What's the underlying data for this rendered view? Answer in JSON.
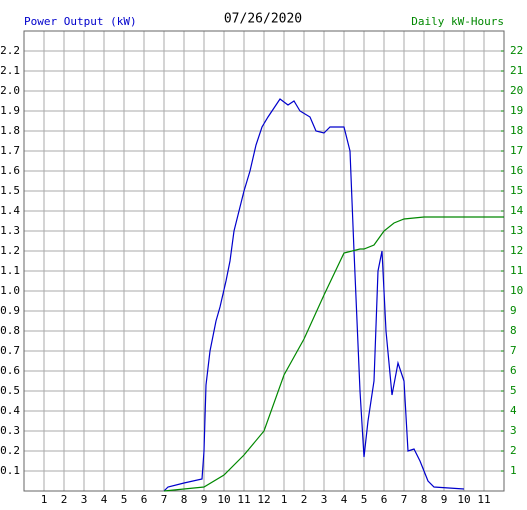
{
  "chart_data": {
    "type": "line",
    "title": "07/26/2020",
    "xlim": [
      0,
      24
    ],
    "xticks": [
      1,
      2,
      3,
      4,
      5,
      6,
      7,
      8,
      9,
      10,
      11,
      12,
      {
        "value": 13,
        "label": "1"
      },
      {
        "value": 14,
        "label": "2"
      },
      {
        "value": 15,
        "label": "3"
      },
      {
        "value": 16,
        "label": "4"
      },
      {
        "value": 17,
        "label": "5"
      },
      {
        "value": 18,
        "label": "6"
      },
      {
        "value": 19,
        "label": "7"
      },
      {
        "value": 20,
        "label": "8"
      },
      {
        "value": 21,
        "label": "9"
      },
      {
        "value": 22,
        "label": "10"
      },
      {
        "value": 23,
        "label": "11"
      }
    ],
    "ylim": [
      0,
      2.3
    ],
    "yticks": [
      0.1,
      0.2,
      0.3,
      0.4,
      0.5,
      0.6,
      0.7,
      0.8,
      0.9,
      {
        "value": 1,
        "label": "1.0"
      },
      1.1,
      1.2,
      1.3,
      1.4,
      1.5,
      1.6,
      1.7,
      1.8,
      1.9,
      {
        "value": 2,
        "label": "2.0"
      },
      2.1,
      2.2
    ],
    "y2lim": [
      0,
      23
    ],
    "y2ticks": [
      1,
      2,
      3,
      4,
      5,
      6,
      7,
      8,
      9,
      10,
      11,
      12,
      13,
      14,
      15,
      16,
      17,
      18,
      19,
      20,
      21,
      22
    ],
    "grid": true,
    "series": [
      {
        "name": "Power Output (kW)",
        "color": "#0000cc",
        "axis": "y",
        "x": [
          7.0,
          7.2,
          8.0,
          8.9,
          9.0,
          9.1,
          9.3,
          9.6,
          9.8,
          10.1,
          10.3,
          10.5,
          10.8,
          11.0,
          11.3,
          11.6,
          11.9,
          12.2,
          12.8,
          13.2,
          13.5,
          13.8,
          14.3,
          14.6,
          15.0,
          15.3,
          16.0,
          16.3,
          16.5,
          16.8,
          17.0,
          17.2,
          17.5,
          17.7,
          17.9,
          18.1,
          18.4,
          18.7,
          19.0,
          19.2,
          19.5,
          19.8,
          20.2,
          20.5,
          22.0
        ],
        "values": [
          0,
          0.02,
          0.04,
          0.06,
          0.2,
          0.53,
          0.7,
          0.85,
          0.92,
          1.05,
          1.15,
          1.3,
          1.42,
          1.5,
          1.6,
          1.73,
          1.82,
          1.87,
          1.96,
          1.93,
          1.95,
          1.9,
          1.87,
          1.8,
          1.79,
          1.82,
          1.82,
          1.7,
          1.2,
          0.5,
          0.17,
          0.35,
          0.55,
          1.1,
          1.2,
          0.8,
          0.48,
          0.64,
          0.55,
          0.2,
          0.21,
          0.15,
          0.05,
          0.02,
          0.01
        ]
      },
      {
        "name": "Daily kW-Hours",
        "color": "#008800",
        "axis": "y2",
        "x": [
          7.0,
          8.0,
          9.0,
          10.0,
          11.0,
          12.0,
          13.0,
          14.0,
          15.0,
          16.0,
          16.8,
          17.0,
          17.5,
          18.0,
          18.5,
          19.0,
          20.0,
          24.0
        ],
        "values": [
          0,
          0.1,
          0.2,
          0.8,
          1.8,
          3.0,
          5.8,
          7.6,
          9.8,
          11.9,
          12.1,
          12.1,
          12.3,
          13.0,
          13.4,
          13.6,
          13.7,
          13.7
        ]
      }
    ]
  }
}
